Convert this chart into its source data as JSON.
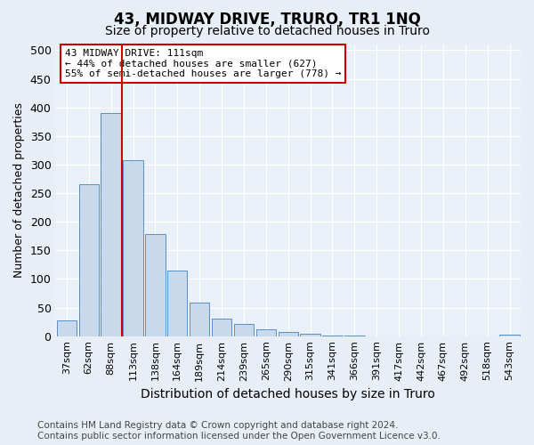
{
  "title": "43, MIDWAY DRIVE, TRURO, TR1 1NQ",
  "subtitle": "Size of property relative to detached houses in Truro",
  "xlabel": "Distribution of detached houses by size in Truro",
  "ylabel": "Number of detached properties",
  "categories": [
    "37sqm",
    "62sqm",
    "88sqm",
    "113sqm",
    "138sqm",
    "164sqm",
    "189sqm",
    "214sqm",
    "239sqm",
    "265sqm",
    "290sqm",
    "315sqm",
    "341sqm",
    "366sqm",
    "391sqm",
    "417sqm",
    "442sqm",
    "467sqm",
    "492sqm",
    "518sqm",
    "543sqm"
  ],
  "values": [
    27,
    265,
    390,
    308,
    178,
    115,
    58,
    30,
    22,
    12,
    8,
    4,
    1,
    1,
    0,
    0,
    0,
    0,
    0,
    0,
    2
  ],
  "bar_color": "#c8d9eb",
  "bar_edge_color": "#5b8fc9",
  "vline_color": "#cc0000",
  "annotation_text": "43 MIDWAY DRIVE: 111sqm\n← 44% of detached houses are smaller (627)\n55% of semi-detached houses are larger (778) →",
  "annotation_box_color": "#ffffff",
  "annotation_box_edge_color": "#cc0000",
  "ylim": [
    0,
    510
  ],
  "yticks": [
    0,
    50,
    100,
    150,
    200,
    250,
    300,
    350,
    400,
    450,
    500
  ],
  "background_color": "#e8eef5",
  "plot_background_color": "#eaf0f7",
  "footer": "Contains HM Land Registry data © Crown copyright and database right 2024.\nContains public sector information licensed under the Open Government Licence v3.0.",
  "title_fontsize": 12,
  "subtitle_fontsize": 10,
  "xlabel_fontsize": 10,
  "ylabel_fontsize": 9,
  "footer_fontsize": 7.5,
  "tick_fontsize": 8
}
